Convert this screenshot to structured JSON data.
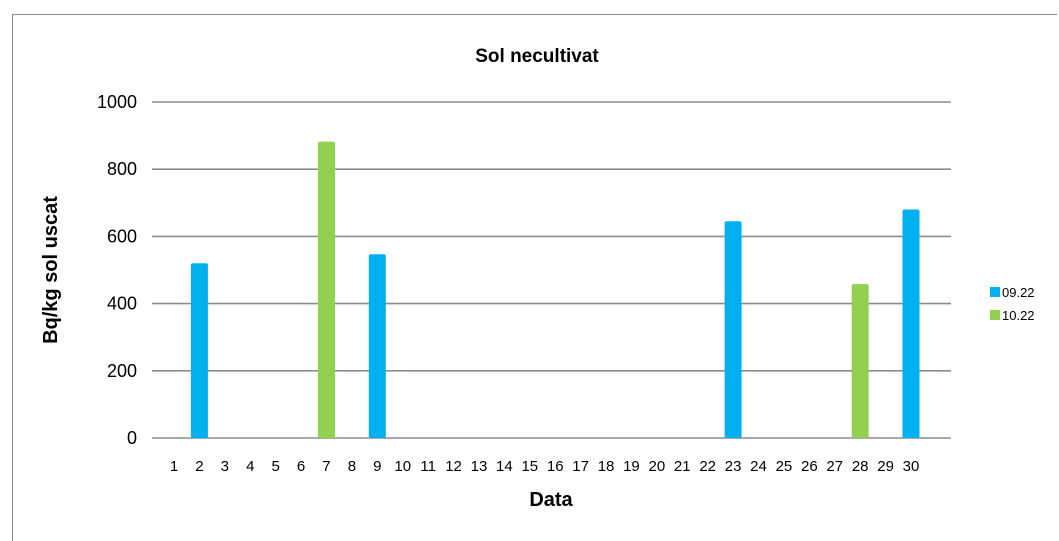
{
  "chart_data": {
    "type": "bar",
    "title": "Sol necultivat",
    "xlabel": "Data",
    "ylabel": "Bq/kg sol uscat",
    "ylim": [
      0,
      1000
    ],
    "yticks": [
      0,
      200,
      400,
      600,
      800,
      1000
    ],
    "categories": [
      "1",
      "2",
      "3",
      "4",
      "5",
      "6",
      "7",
      "8",
      "9",
      "10",
      "11",
      "12",
      "13",
      "14",
      "15",
      "16",
      "17",
      "18",
      "19",
      "20",
      "21",
      "22",
      "23",
      "24",
      "25",
      "26",
      "27",
      "28",
      "29",
      "30"
    ],
    "grid": true,
    "legend_position": "right",
    "series": [
      {
        "name": "09.22",
        "color": "#00b0f0",
        "values": [
          null,
          520,
          null,
          null,
          null,
          null,
          null,
          null,
          547,
          null,
          null,
          null,
          null,
          null,
          null,
          null,
          null,
          null,
          null,
          null,
          null,
          null,
          645,
          null,
          null,
          null,
          null,
          null,
          null,
          680
        ]
      },
      {
        "name": "10.22",
        "color": "#92d050",
        "values": [
          null,
          null,
          null,
          null,
          null,
          null,
          882,
          null,
          null,
          null,
          null,
          null,
          null,
          null,
          null,
          null,
          null,
          null,
          null,
          null,
          null,
          null,
          null,
          null,
          null,
          null,
          null,
          458,
          null,
          null
        ]
      }
    ]
  }
}
